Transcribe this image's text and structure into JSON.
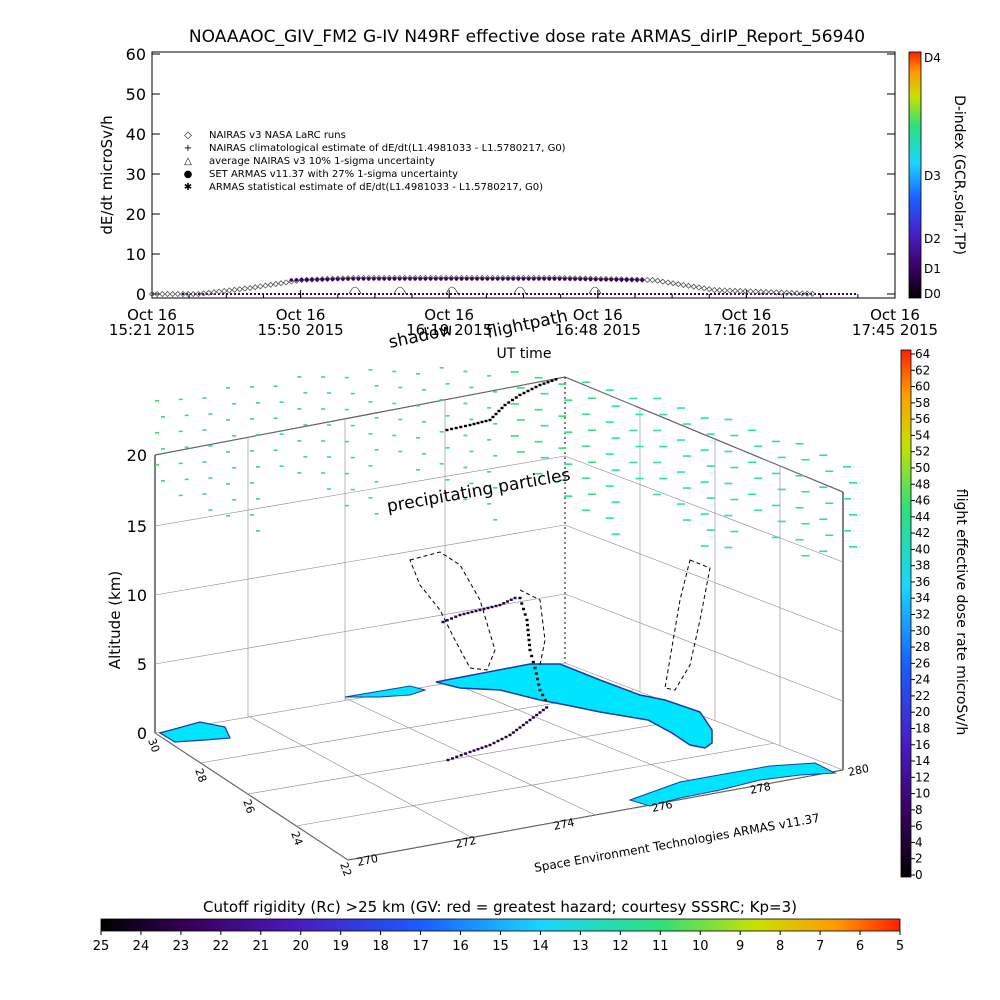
{
  "chart_data": [
    {
      "type": "line",
      "title": "NOAAAOC_GIV_FM2 G-IV    N49RF   effective dose rate ARMAS_dirIP_Report_56940",
      "ylabel": "dE/dt microSv/h",
      "xlabel": "UT time",
      "ylim": [
        0,
        60
      ],
      "yticks": [
        "0",
        "10",
        "20",
        "30",
        "40",
        "50",
        "60"
      ],
      "xticks": [
        {
          "date": "Oct 16",
          "time": "15:21 2015"
        },
        {
          "date": "Oct 16",
          "time": "15:50 2015"
        },
        {
          "date": "Oct 16",
          "time": "16:19 2015"
        },
        {
          "date": "Oct 16",
          "time": "16:48 2015"
        },
        {
          "date": "Oct 16",
          "time": "17:16 2015"
        },
        {
          "date": "Oct 16",
          "time": "17:45 2015"
        }
      ],
      "legend": [
        {
          "symbol": "◇",
          "label": "NAIRAS v3 NASA LaRC runs"
        },
        {
          "symbol": "+",
          "label": "NAIRAS climatological estimate of dE/dt(L1.4981033 - L1.5780217, G0)"
        },
        {
          "symbol": "△",
          "label": "average NAIRAS v3 10% 1-sigma uncertainty"
        },
        {
          "symbol": "●",
          "label": "SET ARMAS v11.37 with 27% 1-sigma uncertainty"
        },
        {
          "symbol": "✱",
          "label": "ARMAS statistical estimate of dE/dt(L1.4981033 - L1.5780217, G0)"
        }
      ],
      "series": [
        {
          "name": "NAIRAS v3 NASA LaRC runs",
          "x_time": [
            "15:21",
            "15:30",
            "15:40",
            "15:50",
            "16:00",
            "16:19",
            "16:40",
            "16:58",
            "17:10",
            "17:30"
          ],
          "values": [
            0,
            0,
            1.5,
            3.5,
            4,
            4,
            4,
            3.5,
            1,
            0
          ]
        },
        {
          "name": "SET ARMAS v11.37 with 27% 1-sigma uncertainty",
          "x_time": [
            "15:48",
            "16:00",
            "16:19",
            "16:40",
            "16:57"
          ],
          "values": [
            3.5,
            3.8,
            3.8,
            3.8,
            3.5
          ]
        }
      ],
      "right_axis": {
        "label": "D-index (GCR,solar,TP)",
        "ticks": [
          "D0",
          "D1",
          "D2",
          "D3",
          "D4"
        ]
      }
    },
    {
      "type": "scatter",
      "title": "",
      "ylabel": "Altitude (km)",
      "zlim": [
        0,
        20
      ],
      "zticks": [
        "0",
        "5",
        "10",
        "15",
        "20"
      ],
      "lat_ticks": [
        "30",
        "28",
        "26",
        "24",
        "22"
      ],
      "lon_ticks": [
        "270",
        "272",
        "274",
        "276",
        "278",
        "280"
      ],
      "labels": [
        "shadow",
        "flightpath",
        "precipitating particles"
      ],
      "credit": "Space Environment Technologies ARMAS v11.37",
      "colorbar": {
        "label": "flight effective dose rate microSv/h",
        "ticks": [
          "0",
          "2",
          "4",
          "6",
          "8",
          "10",
          "12",
          "14",
          "16",
          "18",
          "20",
          "22",
          "24",
          "26",
          "28",
          "30",
          "32",
          "34",
          "36",
          "38",
          "40",
          "42",
          "44",
          "46",
          "48",
          "50",
          "52",
          "54",
          "56",
          "58",
          "60",
          "62",
          "64"
        ]
      }
    }
  ],
  "bottom_bar": {
    "title": "Cutoff rigidity (Rc) >25 km (GV: red = greatest hazard; courtesy SSSRC; Kp=3)",
    "ticks": [
      "25",
      "24",
      "23",
      "22",
      "21",
      "20",
      "19",
      "18",
      "17",
      "16",
      "15",
      "14",
      "13",
      "12",
      "11",
      "10",
      "9",
      "8",
      "7",
      "6",
      "5"
    ]
  },
  "colors": {
    "particles": "#33e07a",
    "ocean": "#00e5ff",
    "coast": "#1a3aa8",
    "flight": "#000000"
  }
}
